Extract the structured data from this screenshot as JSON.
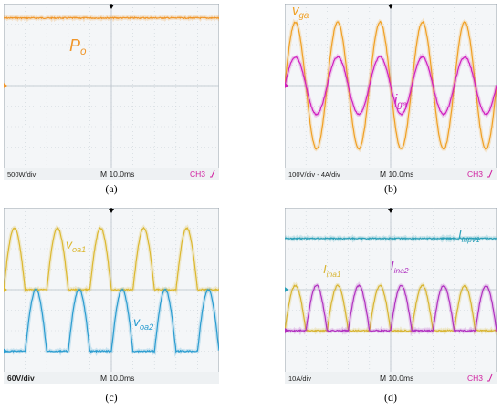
{
  "panels": [
    {
      "id": "a",
      "caption": "(a)",
      "footer": {
        "scale": "500W/div",
        "timebase": "M 10.0ms",
        "channel": "CH3"
      },
      "colors": {
        "screen": "#f4f6f8",
        "grid": "#c9d1d8"
      },
      "chart_data": {
        "type": "line",
        "x_unit": "ms",
        "xlim": [
          0,
          100
        ],
        "ylim": [
          -4,
          4
        ],
        "series": [
          {
            "name": "P_o",
            "color": "#f0962a",
            "shape": "dc",
            "level": 3.3,
            "label": "P",
            "label_sub": "o"
          }
        ]
      }
    },
    {
      "id": "b",
      "caption": "(b)",
      "footer": {
        "scale": "100V/div - 4A/div",
        "timebase": "M 10.0ms",
        "channel": "CH3"
      },
      "colors": {
        "screen": "#f4f6f8",
        "grid": "#c9d1d8"
      },
      "chart_data": {
        "type": "line",
        "x_unit": "ms",
        "xlim": [
          0,
          100
        ],
        "ylim": [
          -4,
          4
        ],
        "series": [
          {
            "name": "v_ga",
            "color": "#f0a024",
            "shape": "sine",
            "amplitude": 3.1,
            "period_ms": 20,
            "phase_deg": 0,
            "label": "v",
            "label_sub": "ga"
          },
          {
            "name": "i_ga",
            "color": "#d020c0",
            "shape": "sine",
            "amplitude": 1.4,
            "period_ms": 20,
            "phase_deg": 0,
            "label": "i",
            "label_sub": "ga"
          }
        ]
      }
    },
    {
      "id": "c",
      "caption": "(c)",
      "footer": {
        "scale": "60V/div",
        "timebase": "M 10.0ms",
        "channel": ""
      },
      "colors": {
        "screen": "#f4f6f8",
        "grid": "#c9d1d8"
      },
      "chart_data": {
        "type": "line",
        "x_unit": "ms",
        "xlim": [
          0,
          100
        ],
        "ylim": [
          -4,
          4
        ],
        "series": [
          {
            "name": "v_oa1",
            "color": "#dcb830",
            "shape": "half_rect_sine",
            "offset": 0.0,
            "peak": 3.0,
            "period_ms": 20,
            "phase_deg": 0,
            "label": "v",
            "label_sub": "oa1"
          },
          {
            "name": "v_oa2",
            "color": "#2a9cd0",
            "shape": "half_rect_sine",
            "offset": -3.0,
            "peak": 3.0,
            "period_ms": 20,
            "phase_deg": 180,
            "label": "v",
            "label_sub": "oa2"
          }
        ]
      }
    },
    {
      "id": "d",
      "caption": "(d)",
      "footer": {
        "scale": "10A/div",
        "timebase": "M 10.0ms",
        "channel": "CH3"
      },
      "colors": {
        "screen": "#f4f6f8",
        "grid": "#c9d1d8"
      },
      "chart_data": {
        "type": "line",
        "x_unit": "ms",
        "xlim": [
          0,
          100
        ],
        "ylim": [
          -4,
          4
        ],
        "series": [
          {
            "name": "I_inpv1",
            "color": "#2aa0b8",
            "shape": "dc",
            "level": 2.5,
            "label": "I",
            "label_sub": "inpv1"
          },
          {
            "name": "I_ina1",
            "color": "#d8b430",
            "shape": "half_rect_sine",
            "offset": -2.0,
            "peak": 2.2,
            "period_ms": 20,
            "phase_deg": 0,
            "label": "I",
            "label_sub": "ina1"
          },
          {
            "name": "I_ina2",
            "color": "#b030c0",
            "shape": "half_rect_sine",
            "offset": -2.0,
            "peak": 2.2,
            "period_ms": 20,
            "phase_deg": 180,
            "label": "I",
            "label_sub": "ina2"
          }
        ]
      }
    }
  ]
}
